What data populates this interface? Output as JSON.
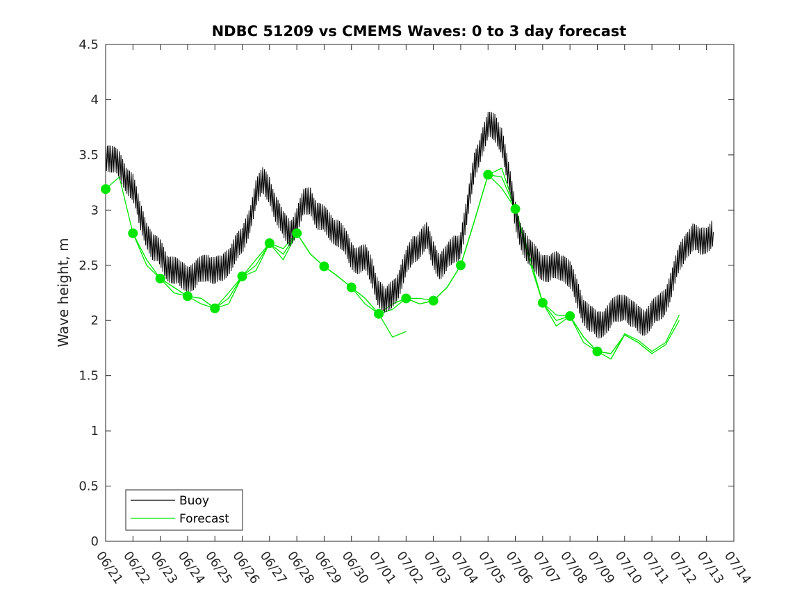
{
  "chart_data": {
    "type": "line",
    "title": "NDBC 51209 vs CMEMS Waves: 0 to 3 day forecast",
    "xlabel": "",
    "ylabel": "Wave height, m",
    "x_ticks": [
      "06/21",
      "06/22",
      "06/23",
      "06/24",
      "06/25",
      "06/26",
      "06/27",
      "06/28",
      "06/29",
      "06/30",
      "07/01",
      "07/02",
      "07/03",
      "07/04",
      "07/05",
      "07/06",
      "07/07",
      "07/08",
      "07/09",
      "07/10",
      "07/11",
      "07/12",
      "07/13",
      "07/14"
    ],
    "xlim_days": [
      0,
      23
    ],
    "ylim": [
      0,
      4.5
    ],
    "y_ticks": [
      0,
      0.5,
      1,
      1.5,
      2,
      2.5,
      3,
      3.5,
      4,
      4.5
    ],
    "grid": false,
    "legend_position": "bottom-left",
    "colors": {
      "buoy": "#000000",
      "forecast": "#00e600"
    },
    "series": [
      {
        "name": "Buoy",
        "x_days": [
          0,
          0.25,
          0.5,
          0.75,
          1,
          1.25,
          1.5,
          1.75,
          2,
          2.25,
          2.5,
          2.75,
          3,
          3.25,
          3.5,
          3.75,
          4,
          4.25,
          4.5,
          4.75,
          5,
          5.25,
          5.5,
          5.75,
          6,
          6.25,
          6.5,
          6.75,
          7,
          7.25,
          7.5,
          7.75,
          8,
          8.25,
          8.5,
          8.75,
          9,
          9.25,
          9.5,
          9.75,
          10,
          10.25,
          10.5,
          10.75,
          11,
          11.25,
          11.5,
          11.75,
          12,
          12.25,
          12.5,
          12.75,
          13,
          13.25,
          13.5,
          13.75,
          14,
          14.25,
          14.5,
          14.75,
          15,
          15.25,
          15.5,
          15.75,
          16,
          16.25,
          16.5,
          16.75,
          17,
          17.25,
          17.5,
          17.75,
          18,
          18.25,
          18.5,
          18.75,
          19,
          19.25,
          19.5,
          19.75,
          20,
          20.25,
          20.5,
          20.75,
          21,
          21.25,
          21.5,
          21.75,
          22,
          22.25
        ],
        "values": [
          3.5,
          3.45,
          3.4,
          3.3,
          3.2,
          2.95,
          2.8,
          2.65,
          2.6,
          2.5,
          2.45,
          2.4,
          2.4,
          2.4,
          2.45,
          2.5,
          2.45,
          2.45,
          2.55,
          2.65,
          2.7,
          2.9,
          3.15,
          3.25,
          3.2,
          3.0,
          2.85,
          2.8,
          2.9,
          3.05,
          3.1,
          2.95,
          2.9,
          2.85,
          2.8,
          2.7,
          2.6,
          2.55,
          2.55,
          2.45,
          2.25,
          2.15,
          2.25,
          2.35,
          2.5,
          2.65,
          2.7,
          2.75,
          2.6,
          2.5,
          2.55,
          2.65,
          2.7,
          3.0,
          3.4,
          3.6,
          3.75,
          3.75,
          3.65,
          3.3,
          2.95,
          2.75,
          2.6,
          2.55,
          2.5,
          2.45,
          2.5,
          2.5,
          2.4,
          2.25,
          2.1,
          2.0,
          1.95,
          2.0,
          2.05,
          2.1,
          2.15,
          2.05,
          2.0,
          2.0,
          2.05,
          2.1,
          2.2,
          2.35,
          2.55,
          2.7,
          2.75,
          2.7,
          2.75,
          2.8
        ]
      },
      {
        "name": "Forecast",
        "analysis_points": {
          "x_days": [
            0,
            1,
            2,
            3,
            4,
            5,
            6,
            7,
            8,
            9,
            10,
            11,
            12,
            13,
            14,
            15,
            16,
            17,
            18,
            19,
            20,
            21,
            22
          ],
          "values": [
            3.19,
            2.79,
            2.38,
            2.22,
            2.11,
            2.4,
            2.7,
            2.79,
            2.49,
            2.3,
            2.06,
            2.2,
            2.18,
            2.5,
            3.32,
            3.01,
            2.16,
            2.04,
            1.72,
            null,
            null,
            null,
            null
          ]
        },
        "runs": [
          {
            "x_days": [
              0,
              0.5,
              1,
              1.5,
              2,
              2.5,
              3
            ],
            "values": [
              3.19,
              3.3,
              2.79,
              2.55,
              2.38,
              2.3,
              2.22
            ]
          },
          {
            "x_days": [
              1,
              1.5,
              2,
              2.5,
              3,
              3.5,
              4
            ],
            "values": [
              2.79,
              2.5,
              2.38,
              2.25,
              2.22,
              2.15,
              2.11
            ]
          },
          {
            "x_days": [
              2,
              2.5,
              3,
              3.5,
              4,
              4.5,
              5
            ],
            "values": [
              2.38,
              2.3,
              2.22,
              2.2,
              2.11,
              2.25,
              2.4
            ]
          },
          {
            "x_days": [
              3,
              3.5,
              4,
              4.5,
              5,
              5.5,
              6
            ],
            "values": [
              2.22,
              2.2,
              2.11,
              2.15,
              2.4,
              2.55,
              2.7
            ]
          },
          {
            "x_days": [
              4,
              4.5,
              5,
              5.5,
              6,
              6.5,
              7
            ],
            "values": [
              2.11,
              2.2,
              2.4,
              2.5,
              2.7,
              2.65,
              2.79
            ]
          },
          {
            "x_days": [
              5,
              5.5,
              6,
              6.5,
              7,
              7.5,
              8
            ],
            "values": [
              2.4,
              2.45,
              2.7,
              2.6,
              2.79,
              2.6,
              2.49
            ]
          },
          {
            "x_days": [
              6,
              6.5,
              7,
              7.5,
              8,
              8.5,
              9
            ],
            "values": [
              2.7,
              2.55,
              2.79,
              2.6,
              2.49,
              2.4,
              2.3
            ]
          },
          {
            "x_days": [
              7,
              7.5,
              8,
              8.5,
              9,
              9.5,
              10
            ],
            "values": [
              2.79,
              2.6,
              2.49,
              2.4,
              2.3,
              2.2,
              2.06
            ]
          },
          {
            "x_days": [
              8,
              8.5,
              9,
              9.5,
              10,
              10.5,
              11
            ],
            "values": [
              2.49,
              2.4,
              2.3,
              2.15,
              2.06,
              1.85,
              1.9
            ]
          },
          {
            "x_days": [
              9,
              9.5,
              10,
              10.5,
              11,
              11.5,
              12
            ],
            "values": [
              2.3,
              2.2,
              2.06,
              2.15,
              2.2,
              2.15,
              2.18
            ]
          },
          {
            "x_days": [
              10,
              10.5,
              11,
              11.5,
              12,
              12.5,
              13
            ],
            "values": [
              2.06,
              2.1,
              2.2,
              2.15,
              2.18,
              2.3,
              2.5
            ]
          },
          {
            "x_days": [
              11,
              11.5,
              12,
              12.5,
              13,
              13.5,
              14
            ],
            "values": [
              2.2,
              2.2,
              2.18,
              2.3,
              2.5,
              2.9,
              3.32
            ]
          },
          {
            "x_days": [
              12,
              12.5,
              13,
              13.5,
              14,
              14.5,
              15
            ],
            "values": [
              2.18,
              2.3,
              2.5,
              2.9,
              3.32,
              3.3,
              3.01
            ]
          },
          {
            "x_days": [
              13,
              13.5,
              14,
              14.5,
              15,
              15.5,
              16
            ],
            "values": [
              2.5,
              2.9,
              3.32,
              3.38,
              3.01,
              2.6,
              2.16
            ]
          },
          {
            "x_days": [
              14,
              14.5,
              15,
              15.5,
              16,
              16.5,
              17
            ],
            "values": [
              3.32,
              3.2,
              3.01,
              2.6,
              2.16,
              2.05,
              2.04
            ]
          },
          {
            "x_days": [
              15,
              15.5,
              16,
              16.5,
              17,
              17.5,
              18
            ],
            "values": [
              3.01,
              2.55,
              2.16,
              2.0,
              2.04,
              1.85,
              1.72
            ]
          },
          {
            "x_days": [
              16,
              16.5,
              17,
              17.5,
              18,
              18.5,
              19
            ],
            "values": [
              2.16,
              1.95,
              2.04,
              1.85,
              1.72,
              1.65,
              1.87
            ]
          },
          {
            "x_days": [
              17,
              17.5,
              18,
              18.5,
              19,
              19.5,
              20
            ],
            "values": [
              2.04,
              1.8,
              1.72,
              1.7,
              1.87,
              1.8,
              1.7
            ]
          },
          {
            "x_days": [
              18,
              18.5,
              19,
              19.5,
              20,
              20.5,
              21
            ],
            "values": [
              1.72,
              1.7,
              1.87,
              1.8,
              1.7,
              1.78,
              2.0
            ]
          },
          {
            "x_days": [
              18.5,
              19,
              19.5,
              20,
              20.5,
              21
            ],
            "values": [
              1.65,
              1.88,
              1.82,
              1.72,
              1.8,
              2.05
            ]
          }
        ]
      }
    ]
  }
}
